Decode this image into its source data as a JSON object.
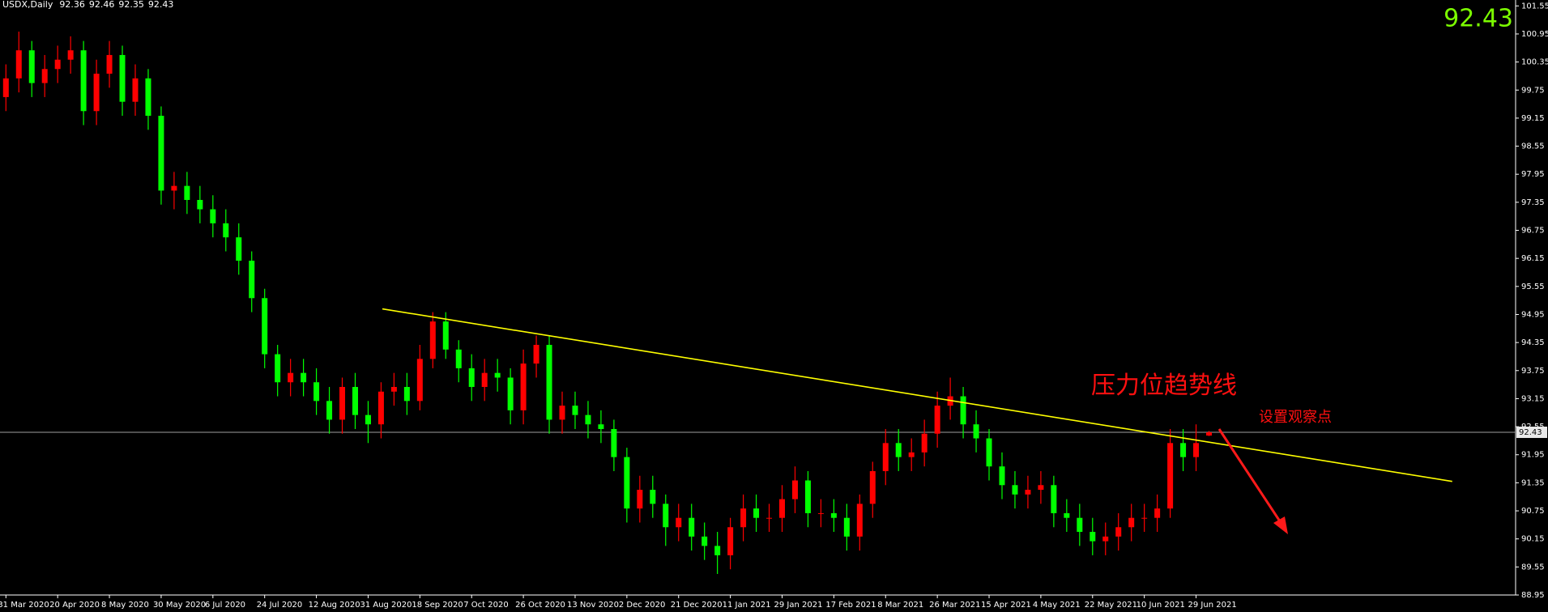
{
  "chart_data": {
    "type": "candlestick",
    "title": "USDX,Daily",
    "categories": [
      "31 Mar 2020",
      null,
      null,
      null,
      "20 Apr 2020",
      null,
      null,
      null,
      "8 May 2020",
      null,
      null,
      null,
      "30 May 2020",
      null,
      null,
      null,
      "6 Jul 2020",
      null,
      null,
      null,
      "24 Jul 2020",
      null,
      null,
      null,
      "12 Aug 2020",
      null,
      null,
      null,
      "31 Aug 2020",
      null,
      null,
      null,
      "18 Sep 2020",
      null,
      null,
      null,
      "7 Oct 2020",
      null,
      null,
      null,
      "26 Oct 2020",
      null,
      null,
      null,
      "13 Nov 2020",
      null,
      null,
      null,
      "2 Dec 2020",
      null,
      null,
      null,
      "21 Dec 2020",
      null,
      null,
      null,
      "11 Jan 2021",
      null,
      null,
      null,
      "29 Jan 2021",
      null,
      null,
      null,
      "17 Feb 2021",
      null,
      null,
      null,
      "8 Mar 2021",
      null,
      null,
      null,
      "26 Mar 2021",
      null,
      null,
      null,
      "15 Apr 2021",
      null,
      null,
      null,
      "4 May 2021",
      null,
      null,
      null,
      "22 May 2021",
      null,
      null,
      null,
      "10 Jun 2021",
      null,
      null,
      null,
      "29 Jun 2021",
      null
    ],
    "open": [
      99.6,
      100.0,
      100.6,
      99.9,
      100.2,
      100.4,
      100.6,
      99.3,
      100.1,
      100.5,
      99.5,
      100.0,
      99.2,
      97.6,
      97.7,
      97.4,
      97.2,
      96.9,
      96.6,
      96.1,
      95.3,
      94.1,
      93.5,
      93.7,
      93.5,
      93.1,
      92.7,
      93.4,
      92.8,
      92.6,
      93.3,
      93.4,
      93.1,
      94.0,
      94.8,
      94.2,
      93.8,
      93.4,
      93.7,
      93.6,
      92.9,
      93.9,
      94.3,
      92.7,
      93.0,
      92.8,
      92.6,
      92.5,
      91.9,
      90.8,
      91.2,
      90.9,
      90.4,
      90.6,
      90.2,
      90.0,
      89.8,
      90.4,
      90.8,
      90.6,
      90.6,
      91.0,
      91.4,
      90.7,
      90.7,
      90.6,
      90.2,
      90.9,
      91.6,
      92.2,
      91.9,
      92.0,
      92.4,
      93.0,
      93.2,
      92.6,
      92.3,
      91.7,
      91.3,
      91.1,
      91.2,
      91.3,
      90.7,
      90.6,
      90.3,
      90.1,
      90.2,
      90.4,
      90.6,
      90.6,
      90.8,
      92.2,
      91.9,
      92.36
    ],
    "high": [
      100.3,
      101.0,
      100.8,
      100.5,
      100.7,
      100.9,
      100.8,
      100.4,
      100.8,
      100.7,
      100.3,
      100.2,
      99.4,
      98.0,
      98.0,
      97.7,
      97.5,
      97.2,
      96.9,
      96.3,
      95.5,
      94.3,
      94.0,
      94.0,
      93.8,
      93.4,
      93.6,
      93.7,
      93.1,
      93.5,
      93.7,
      93.7,
      94.3,
      95.0,
      95.0,
      94.4,
      94.1,
      94.0,
      94.0,
      93.8,
      94.2,
      94.5,
      94.5,
      93.3,
      93.3,
      93.1,
      92.9,
      92.7,
      92.1,
      91.5,
      91.5,
      91.1,
      90.9,
      90.9,
      90.5,
      90.3,
      90.6,
      91.1,
      91.1,
      90.9,
      91.3,
      91.7,
      91.6,
      91.0,
      91.0,
      90.9,
      91.1,
      91.8,
      92.5,
      92.5,
      92.3,
      92.7,
      93.3,
      93.6,
      93.4,
      92.9,
      92.5,
      92.0,
      91.6,
      91.5,
      91.6,
      91.5,
      91.0,
      90.9,
      90.6,
      90.5,
      90.7,
      90.9,
      90.9,
      91.1,
      92.5,
      92.5,
      92.6,
      92.46
    ],
    "low": [
      99.3,
      99.7,
      99.6,
      99.6,
      99.9,
      100.1,
      99.0,
      99.0,
      99.8,
      99.2,
      99.2,
      98.9,
      97.3,
      97.2,
      97.1,
      96.9,
      96.6,
      96.3,
      95.8,
      95.0,
      93.8,
      93.2,
      93.2,
      93.2,
      92.8,
      92.4,
      92.4,
      92.5,
      92.2,
      92.3,
      93.0,
      92.8,
      92.9,
      93.8,
      94.0,
      93.5,
      93.1,
      93.1,
      93.3,
      92.6,
      92.6,
      93.6,
      92.4,
      92.4,
      92.5,
      92.3,
      92.2,
      91.6,
      90.5,
      90.5,
      90.6,
      90.0,
      90.1,
      89.9,
      89.7,
      89.4,
      89.5,
      90.1,
      90.3,
      90.3,
      90.3,
      90.7,
      90.4,
      90.4,
      90.3,
      89.9,
      89.9,
      90.6,
      91.3,
      91.6,
      91.6,
      91.7,
      92.1,
      92.7,
      92.3,
      92.0,
      91.4,
      91.0,
      90.8,
      90.8,
      90.9,
      90.4,
      90.3,
      90.0,
      89.8,
      89.8,
      89.9,
      90.1,
      90.3,
      90.3,
      90.6,
      91.6,
      91.6,
      92.35
    ],
    "close": [
      100.0,
      100.6,
      99.9,
      100.2,
      100.4,
      100.6,
      99.3,
      100.1,
      100.5,
      99.5,
      100.0,
      99.2,
      97.6,
      97.7,
      97.4,
      97.2,
      96.9,
      96.6,
      96.1,
      95.3,
      94.1,
      93.5,
      93.7,
      93.5,
      93.1,
      92.7,
      93.4,
      92.8,
      92.6,
      93.3,
      93.4,
      93.1,
      94.0,
      94.8,
      94.2,
      93.8,
      93.4,
      93.7,
      93.6,
      92.9,
      93.9,
      94.3,
      92.7,
      93.0,
      92.8,
      92.6,
      92.5,
      91.9,
      90.8,
      91.2,
      90.9,
      90.4,
      90.6,
      90.2,
      90.0,
      89.8,
      90.4,
      90.8,
      90.6,
      90.6,
      91.0,
      91.4,
      90.7,
      90.7,
      90.6,
      90.2,
      90.9,
      91.6,
      92.2,
      91.9,
      92.0,
      92.4,
      93.0,
      93.2,
      92.6,
      92.3,
      91.7,
      91.3,
      91.1,
      91.2,
      91.3,
      90.7,
      90.6,
      90.3,
      90.1,
      90.2,
      90.4,
      90.6,
      90.6,
      90.8,
      92.2,
      91.9,
      92.2,
      92.43
    ],
    "up_color": "#ff0000",
    "down_color": "#00ff00",
    "ylim": [
      88.95,
      101.55
    ],
    "yticks": [
      88.95,
      89.55,
      90.15,
      90.75,
      91.35,
      91.95,
      92.55,
      93.15,
      93.75,
      94.35,
      94.95,
      95.55,
      96.15,
      96.75,
      97.35,
      97.95,
      98.55,
      99.15,
      99.75,
      100.35,
      100.95,
      101.55
    ],
    "trendline": {
      "x": [
        29.1,
        111.8
      ],
      "y": [
        95.07,
        91.38
      ],
      "color": "#ffff00"
    },
    "annotations": [
      "压力位趋势线",
      "设置观察点"
    ]
  }
}
